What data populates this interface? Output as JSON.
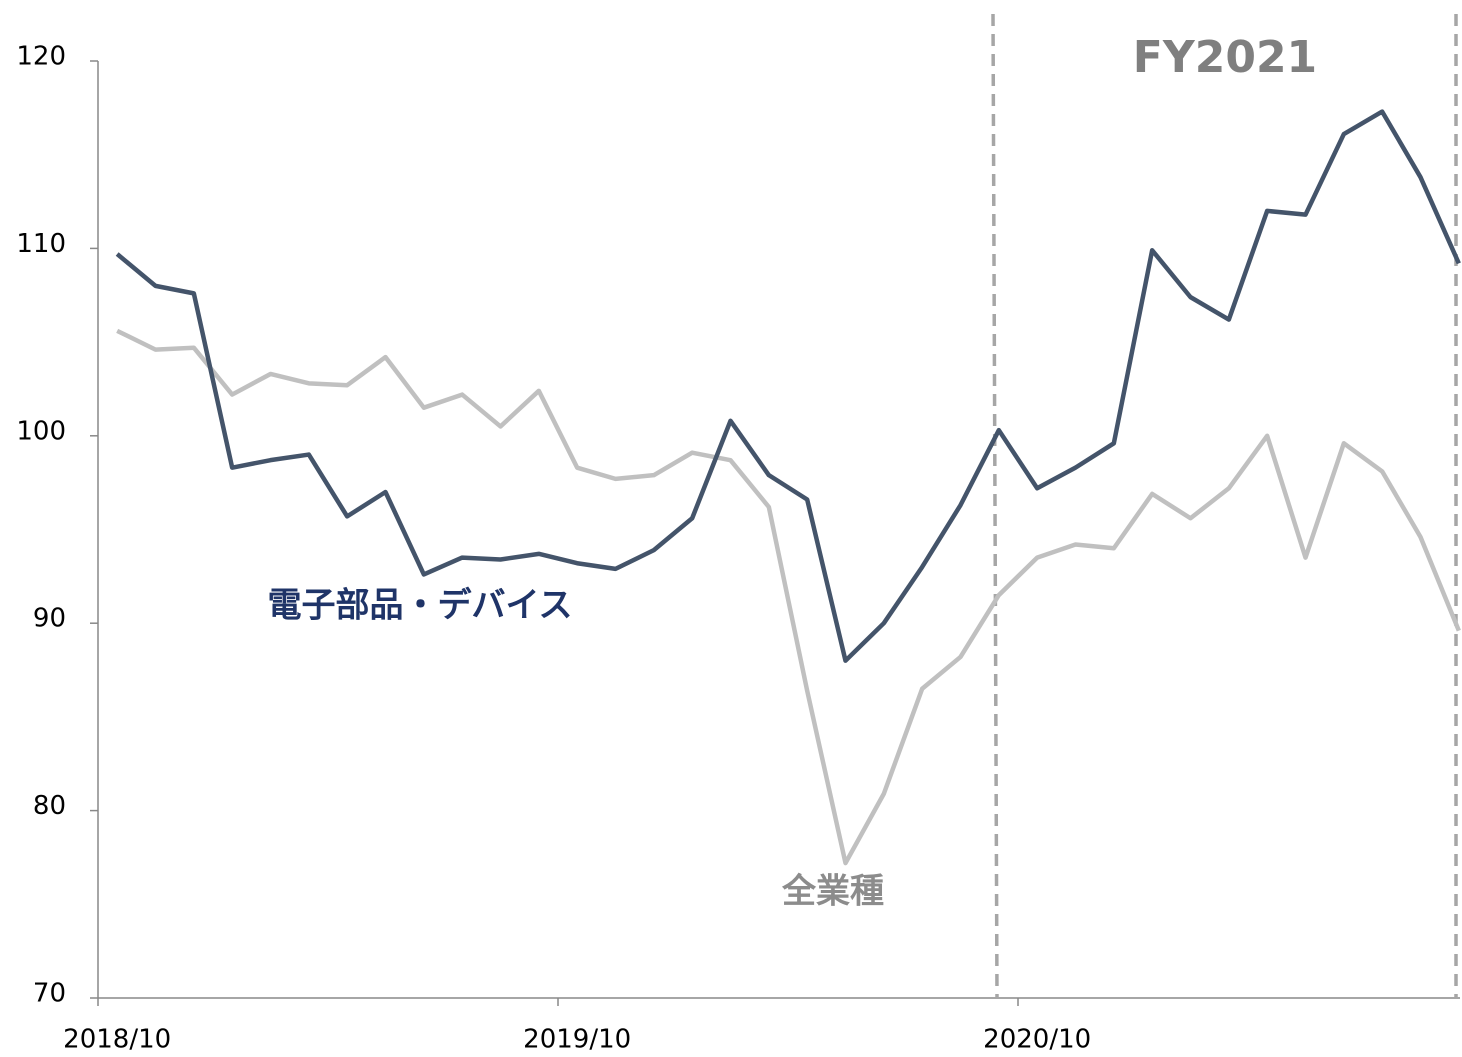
{
  "chart_data": {
    "type": "line",
    "annotations": [
      "FY2021"
    ],
    "categories": [
      "2018/10",
      null,
      null,
      null,
      null,
      null,
      null,
      null,
      null,
      null,
      null,
      null,
      "2019/10",
      null,
      null,
      null,
      null,
      null,
      null,
      null,
      null,
      null,
      null,
      null,
      "2020/10",
      null,
      null,
      null,
      null,
      null,
      null,
      null,
      null,
      null,
      null,
      null
    ],
    "series": [
      {
        "name": "電子部品・デバイス",
        "color": "#44546a",
        "label_color": "#1f3468",
        "values": [
          109.7,
          108.0,
          107.6,
          98.3,
          98.7,
          99.0,
          95.7,
          97.0,
          92.6,
          93.5,
          93.4,
          93.7,
          93.2,
          92.9,
          93.9,
          95.6,
          100.8,
          97.9,
          96.6,
          88.0,
          90.0,
          93.0,
          96.3,
          100.3,
          97.2,
          98.3,
          99.6,
          109.9,
          107.4,
          106.2,
          112.0,
          111.8,
          116.1,
          117.3,
          113.8,
          109.2
        ]
      },
      {
        "name": "全業種",
        "color": "#c0c0c0",
        "label_color": "#8c8c8c",
        "values": [
          105.6,
          104.6,
          104.7,
          102.2,
          103.3,
          102.8,
          102.7,
          104.2,
          101.5,
          102.2,
          100.5,
          102.4,
          98.3,
          97.7,
          97.9,
          99.1,
          98.7,
          96.2,
          86.4,
          77.2,
          80.9,
          86.5,
          88.2,
          91.5,
          93.5,
          94.2,
          94.0,
          96.9,
          95.6,
          97.2,
          100.0,
          93.5,
          99.6,
          98.1,
          94.6,
          89.6
        ]
      }
    ],
    "ylim": [
      70,
      120
    ],
    "yticks": [
      70,
      80,
      90,
      100,
      110,
      120
    ],
    "grid": false
  }
}
